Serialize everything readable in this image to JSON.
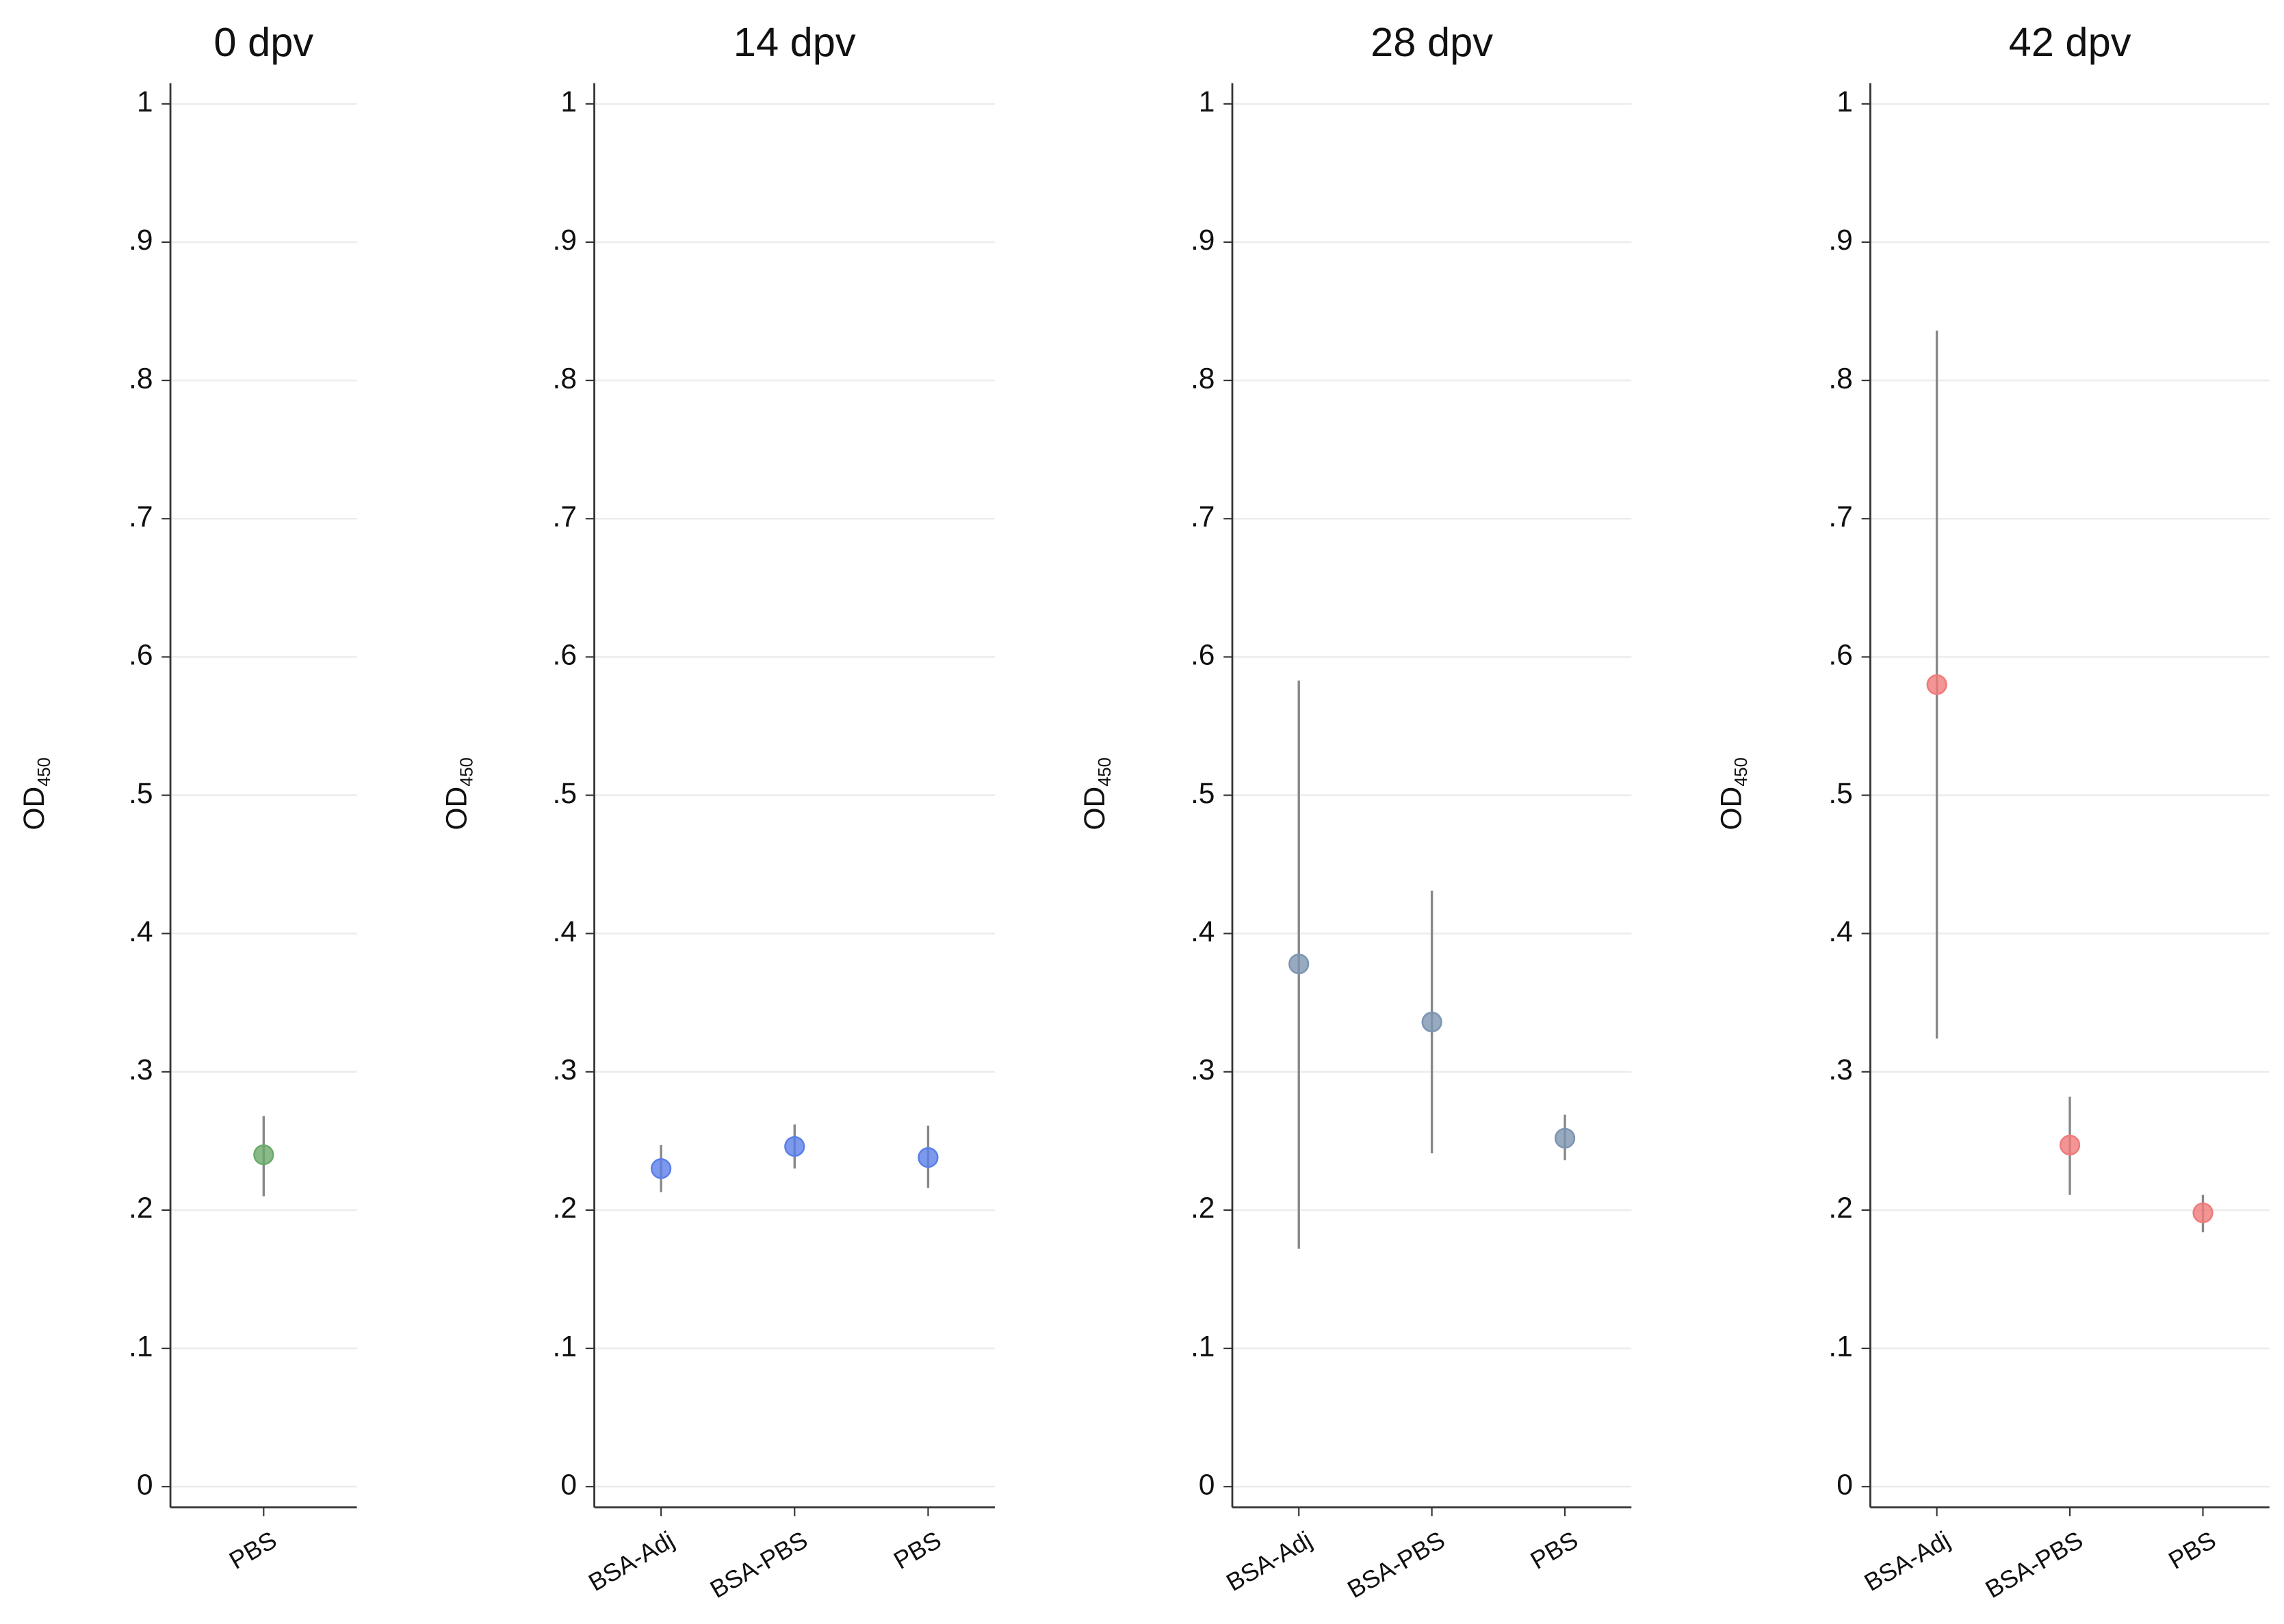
{
  "chart_data": [
    {
      "type": "errorbar",
      "title": "0 dpv",
      "ylabel": "OD",
      "ylabel_subscript": "450",
      "categories": [
        "PBS"
      ],
      "values": [
        0.24
      ],
      "lower": [
        0.21
      ],
      "upper": [
        0.268
      ],
      "color": "#6aaa6a",
      "ylim": [
        -0.015,
        1.015
      ],
      "yticks": [
        0,
        {
          "value": 0.1,
          "label": ".1"
        },
        {
          "value": 0.2,
          "label": ".2"
        },
        {
          "value": 0.3,
          "label": ".3"
        },
        {
          "value": 0.4,
          "label": ".4"
        },
        {
          "value": 0.5,
          "label": ".5"
        },
        {
          "value": 0.6,
          "label": ".6"
        },
        {
          "value": 0.7,
          "label": ".7"
        },
        {
          "value": 0.8,
          "label": ".8"
        },
        {
          "value": 0.9,
          "label": ".9"
        },
        1
      ],
      "grid": true
    },
    {
      "type": "errorbar",
      "title": "14 dpv",
      "ylabel": "OD",
      "ylabel_subscript": "450",
      "categories": [
        "BSA-Adj",
        "BSA-PBS",
        "PBS"
      ],
      "values": [
        0.23,
        0.246,
        0.238
      ],
      "lower": [
        0.213,
        0.23,
        0.216
      ],
      "upper": [
        0.247,
        0.262,
        0.261
      ],
      "color": "#5b7fe8",
      "ylim": [
        -0.015,
        1.015
      ],
      "yticks": [
        0,
        {
          "value": 0.1,
          "label": ".1"
        },
        {
          "value": 0.2,
          "label": ".2"
        },
        {
          "value": 0.3,
          "label": ".3"
        },
        {
          "value": 0.4,
          "label": ".4"
        },
        {
          "value": 0.5,
          "label": ".5"
        },
        {
          "value": 0.6,
          "label": ".6"
        },
        {
          "value": 0.7,
          "label": ".7"
        },
        {
          "value": 0.8,
          "label": ".8"
        },
        {
          "value": 0.9,
          "label": ".9"
        },
        1
      ],
      "grid": true
    },
    {
      "type": "errorbar",
      "title": "28 dpv",
      "ylabel": "OD",
      "ylabel_subscript": "450",
      "categories": [
        "BSA-Adj",
        "BSA-PBS",
        "PBS"
      ],
      "values": [
        0.378,
        0.336,
        0.252
      ],
      "lower": [
        0.172,
        0.241,
        0.236
      ],
      "upper": [
        0.583,
        0.431,
        0.269
      ],
      "color": "#7d95b0",
      "ylim": [
        -0.015,
        1.015
      ],
      "yticks": [
        0,
        {
          "value": 0.1,
          "label": ".1"
        },
        {
          "value": 0.2,
          "label": ".2"
        },
        {
          "value": 0.3,
          "label": ".3"
        },
        {
          "value": 0.4,
          "label": ".4"
        },
        {
          "value": 0.5,
          "label": ".5"
        },
        {
          "value": 0.6,
          "label": ".6"
        },
        {
          "value": 0.7,
          "label": ".7"
        },
        {
          "value": 0.8,
          "label": ".8"
        },
        {
          "value": 0.9,
          "label": ".9"
        },
        1
      ],
      "grid": true
    },
    {
      "type": "errorbar",
      "title": "42 dpv",
      "ylabel": "OD",
      "ylabel_subscript": "450",
      "categories": [
        "BSA-Adj",
        "BSA-PBS",
        "PBS"
      ],
      "values": [
        0.58,
        0.247,
        0.198
      ],
      "lower": [
        0.324,
        0.211,
        0.184
      ],
      "upper": [
        0.836,
        0.282,
        0.211
      ],
      "color": "#f07a7a",
      "ylim": [
        -0.015,
        1.015
      ],
      "yticks": [
        0,
        {
          "value": 0.1,
          "label": ".1"
        },
        {
          "value": 0.2,
          "label": ".2"
        },
        {
          "value": 0.3,
          "label": ".3"
        },
        {
          "value": 0.4,
          "label": ".4"
        },
        {
          "value": 0.5,
          "label": ".5"
        },
        {
          "value": 0.6,
          "label": ".6"
        },
        {
          "value": 0.7,
          "label": ".7"
        },
        {
          "value": 0.8,
          "label": ".8"
        },
        {
          "value": 0.9,
          "label": ".9"
        },
        1
      ],
      "grid": true
    }
  ]
}
